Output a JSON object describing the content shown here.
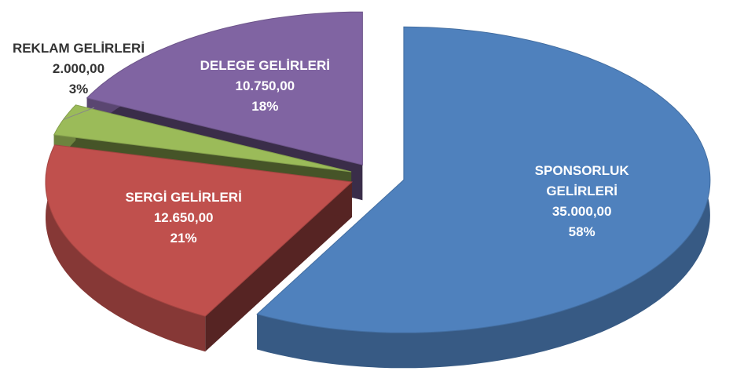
{
  "chart_data": {
    "type": "pie3d",
    "categories": [
      "SPONSORLUK GELİRLERİ",
      "SERGİ GELİRLERİ",
      "REKLAM GELİRLERİ",
      "DELEGE GELİRLERİ"
    ],
    "values": [
      35000,
      12650,
      2000,
      10750
    ],
    "value_labels": [
      "35.000,00",
      "12.650,00",
      "2.000,00",
      "10.750,00"
    ],
    "percent_labels": [
      "58%",
      "21%",
      "3%",
      "18%"
    ],
    "colors": [
      "#4f81bd",
      "#c0504d",
      "#9bbb59",
      "#8064a2"
    ]
  }
}
